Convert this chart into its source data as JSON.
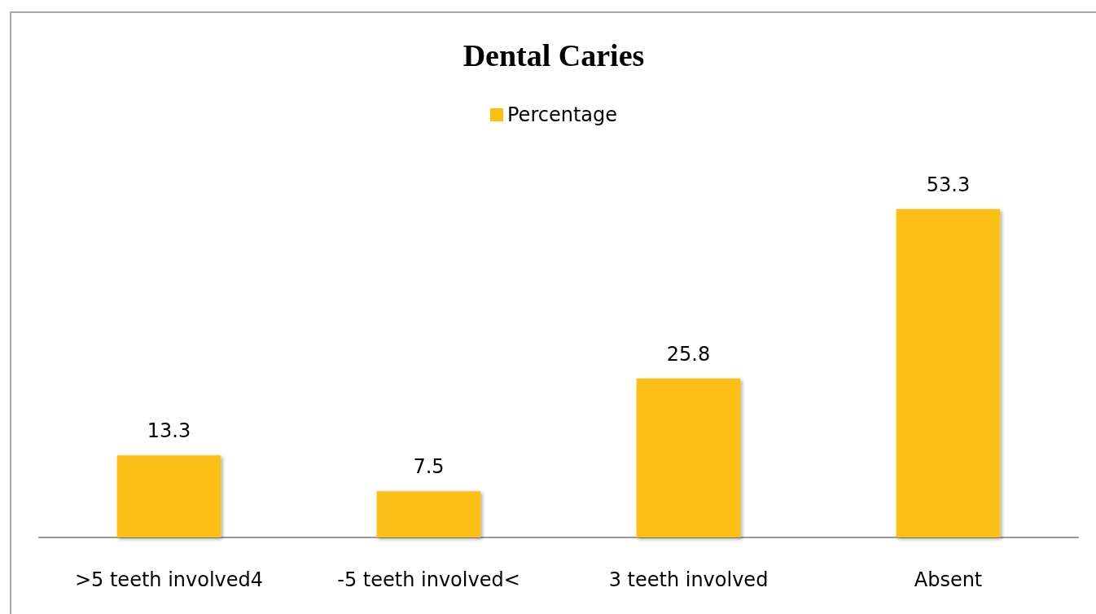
{
  "chart_data": {
    "type": "bar",
    "title": "Dental Caries",
    "categories": [
      ">5 teeth involved4",
      "-5 teeth involved<",
      "3 teeth involved",
      "Absent"
    ],
    "series": [
      {
        "name": "Percentage",
        "color": "#fcbf12",
        "values": [
          13.3,
          7.5,
          25.8,
          53.3
        ]
      }
    ],
    "data_labels": true,
    "legend": "top",
    "grid": false,
    "tick_labels": "x"
  }
}
